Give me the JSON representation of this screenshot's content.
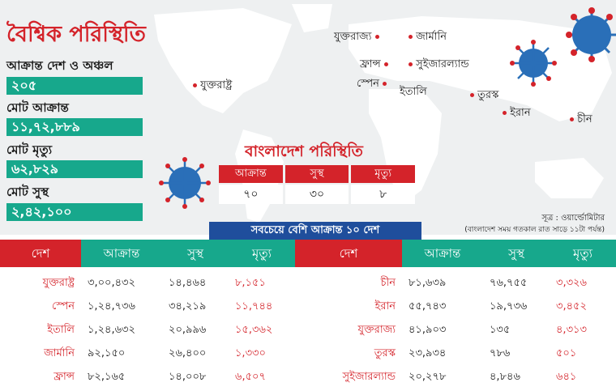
{
  "title": "বৈশ্বিক পরিস্থিতি",
  "summary": [
    {
      "label": "আক্রান্ত দেশ ও অঞ্চল",
      "value": "২০৫"
    },
    {
      "label": "মোট আক্রান্ত",
      "value": "১১,৭২,৮৮৯"
    },
    {
      "label": "মোট মৃত্যু",
      "value": "৬২,৮২৯"
    },
    {
      "label": "মোট সুস্থ",
      "value": "২,৪২,১০০"
    }
  ],
  "map_labels": [
    "যুক্তরাষ্ট্র",
    "যুক্তরাজ্য",
    "জার্মানি",
    "ফ্রান্স",
    "সুইজারল্যান্ড",
    "স্পেন",
    "ইতালি",
    "তুরস্ক",
    "ইরান",
    "চীন"
  ],
  "bangladesh": {
    "title": "বাংলাদেশ পরিস্থিতি",
    "headers": [
      "আক্রান্ত",
      "সুস্থ",
      "মৃত্যু"
    ],
    "values": [
      "৭০",
      "৩০",
      "৮"
    ]
  },
  "source": "সূত্র : ওয়ার্ল্ডোমিটার",
  "note": "(বাংলাদেশ সময় গতকাল রাত সাড়ে ১১টা পর্যন্ত)",
  "banner": "সবচেয়ে বেশি আক্রান্ত ১০ দেশ",
  "left_table": {
    "headers": [
      "দেশ",
      "আক্রান্ত",
      "সুস্থ",
      "মৃত্যু"
    ],
    "rows": [
      [
        "যুক্তরাষ্ট্র",
        "৩,০০,৪৩২",
        "১৪,৪৬৪",
        "৮,১৫১"
      ],
      [
        "স্পেন",
        "১,২৪,৭৩৬",
        "৩৪,২১৯",
        "১১,৭৪৪"
      ],
      [
        "ইতালি",
        "১,২৪,৬৩২",
        "২০,৯৯৬",
        "১৫,৩৬২"
      ],
      [
        "জার্মানি",
        "৯২,১৫০",
        "২৬,৪০০",
        "১,৩৩০"
      ],
      [
        "ফ্রান্স",
        "৮২,১৬৫",
        "১৪,০০৮",
        "৬,৫০৭"
      ]
    ]
  },
  "right_table": {
    "headers": [
      "দেশ",
      "আক্রান্ত",
      "সুস্থ",
      "মৃত্যু"
    ],
    "rows": [
      [
        "চীন",
        "৮১,৬৩৯",
        "৭৬,৭৫৫",
        "৩,৩২৬"
      ],
      [
        "ইরান",
        "৫৫,৭৪৩",
        "১৯,৭৩৬",
        "৩,৪৫২"
      ],
      [
        "যুক্তরাজ্য",
        "৪১,৯০৩",
        "১৩৫",
        "৪,৩১৩"
      ],
      [
        "তুরস্ক",
        "২৩,৯৩৪",
        "৭৮৬",
        "৫০১"
      ],
      [
        "সুইজারল্যান্ড",
        "২০,২৭৮",
        "৪,৮৪৬",
        "৬৪১"
      ]
    ]
  },
  "colors": {
    "red": "#d4232a",
    "green": "#17a88c",
    "blue": "#1f4e9c"
  }
}
